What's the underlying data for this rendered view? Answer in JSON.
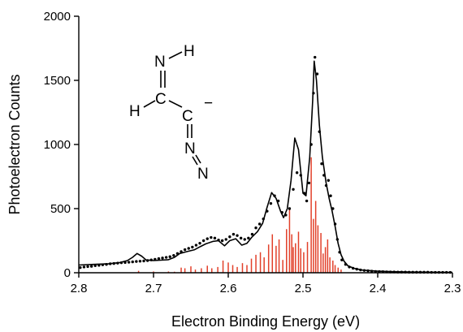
{
  "chart_data": {
    "type": "line",
    "title": "",
    "xlabel": "Electron Binding Energy (eV)",
    "ylabel": "Photoelectron Counts",
    "xlim": [
      2.8,
      2.3
    ],
    "ylim": [
      0,
      2000
    ],
    "x_reversed": true,
    "x_ticks": [
      "2.8",
      "2.7",
      "2.6",
      "2.5",
      "2.4",
      "2.3"
    ],
    "y_ticks": [
      "0",
      "500",
      "1000",
      "1500",
      "2000"
    ],
    "grid": false,
    "legend": "none",
    "series": [
      {
        "kind": "dots",
        "color": "#000000",
        "points": [
          [
            2.798,
            40
          ],
          [
            2.793,
            45
          ],
          [
            2.788,
            48
          ],
          [
            2.783,
            50
          ],
          [
            2.778,
            55
          ],
          [
            2.773,
            58
          ],
          [
            2.768,
            62
          ],
          [
            2.763,
            65
          ],
          [
            2.758,
            70
          ],
          [
            2.753,
            72
          ],
          [
            2.748,
            75
          ],
          [
            2.743,
            78
          ],
          [
            2.738,
            80
          ],
          [
            2.733,
            82
          ],
          [
            2.728,
            85
          ],
          [
            2.723,
            88
          ],
          [
            2.718,
            90
          ],
          [
            2.713,
            92
          ],
          [
            2.708,
            95
          ],
          [
            2.703,
            100
          ],
          [
            2.698,
            105
          ],
          [
            2.693,
            110
          ],
          [
            2.688,
            115
          ],
          [
            2.683,
            120
          ],
          [
            2.678,
            125
          ],
          [
            2.673,
            135
          ],
          [
            2.668,
            150
          ],
          [
            2.663,
            165
          ],
          [
            2.658,
            180
          ],
          [
            2.653,
            190
          ],
          [
            2.648,
            200
          ],
          [
            2.643,
            215
          ],
          [
            2.638,
            230
          ],
          [
            2.633,
            250
          ],
          [
            2.628,
            265
          ],
          [
            2.623,
            275
          ],
          [
            2.618,
            270
          ],
          [
            2.613,
            255
          ],
          [
            2.608,
            250
          ],
          [
            2.603,
            260
          ],
          [
            2.598,
            280
          ],
          [
            2.593,
            300
          ],
          [
            2.588,
            290
          ],
          [
            2.583,
            270
          ],
          [
            2.578,
            260
          ],
          [
            2.573,
            270
          ],
          [
            2.568,
            300
          ],
          [
            2.563,
            350
          ],
          [
            2.558,
            380
          ],
          [
            2.553,
            420
          ],
          [
            2.548,
            480
          ],
          [
            2.543,
            540
          ],
          [
            2.538,
            600
          ],
          [
            2.533,
            560
          ],
          [
            2.528,
            470
          ],
          [
            2.523,
            450
          ],
          [
            2.518,
            500
          ],
          [
            2.513,
            650
          ],
          [
            2.508,
            780
          ],
          [
            2.503,
            760
          ],
          [
            2.498,
            620
          ],
          [
            2.495,
            560
          ],
          [
            2.492,
            700
          ],
          [
            2.489,
            1000
          ],
          [
            2.486,
            1400
          ],
          [
            2.484,
            1680
          ],
          [
            2.481,
            1550
          ],
          [
            2.478,
            1100
          ],
          [
            2.475,
            850
          ],
          [
            2.472,
            760
          ],
          [
            2.469,
            680
          ],
          [
            2.466,
            720
          ],
          [
            2.463,
            600
          ],
          [
            2.46,
            500
          ],
          [
            2.457,
            380
          ],
          [
            2.454,
            260
          ],
          [
            2.451,
            160
          ],
          [
            2.448,
            100
          ],
          [
            2.443,
            65
          ],
          [
            2.438,
            45
          ],
          [
            2.433,
            35
          ],
          [
            2.428,
            28
          ],
          [
            2.423,
            22
          ],
          [
            2.418,
            18
          ],
          [
            2.413,
            15
          ],
          [
            2.408,
            12
          ],
          [
            2.403,
            10
          ],
          [
            2.398,
            9
          ],
          [
            2.393,
            8
          ],
          [
            2.388,
            7
          ],
          [
            2.383,
            6
          ],
          [
            2.378,
            6
          ],
          [
            2.373,
            5
          ],
          [
            2.368,
            5
          ],
          [
            2.363,
            5
          ],
          [
            2.358,
            4
          ],
          [
            2.353,
            4
          ],
          [
            2.348,
            4
          ],
          [
            2.343,
            4
          ],
          [
            2.338,
            4
          ],
          [
            2.333,
            4
          ],
          [
            2.328,
            3
          ],
          [
            2.323,
            3
          ],
          [
            2.318,
            3
          ],
          [
            2.313,
            3
          ],
          [
            2.308,
            3
          ],
          [
            2.303,
            3
          ]
        ]
      },
      {
        "kind": "line",
        "color": "#000000",
        "points": [
          [
            2.8,
            60
          ],
          [
            2.78,
            65
          ],
          [
            2.76,
            70
          ],
          [
            2.745,
            80
          ],
          [
            2.735,
            95
          ],
          [
            2.728,
            120
          ],
          [
            2.722,
            150
          ],
          [
            2.716,
            130
          ],
          [
            2.71,
            100
          ],
          [
            2.7,
            95
          ],
          [
            2.69,
            98
          ],
          [
            2.68,
            102
          ],
          [
            2.672,
            120
          ],
          [
            2.665,
            150
          ],
          [
            2.655,
            165
          ],
          [
            2.645,
            180
          ],
          [
            2.637,
            205
          ],
          [
            2.63,
            225
          ],
          [
            2.62,
            245
          ],
          [
            2.613,
            250
          ],
          [
            2.605,
            210
          ],
          [
            2.598,
            250
          ],
          [
            2.59,
            265
          ],
          [
            2.582,
            215
          ],
          [
            2.575,
            230
          ],
          [
            2.568,
            280
          ],
          [
            2.561,
            320
          ],
          [
            2.554,
            385
          ],
          [
            2.548,
            510
          ],
          [
            2.542,
            625
          ],
          [
            2.536,
            580
          ],
          [
            2.53,
            480
          ],
          [
            2.526,
            430
          ],
          [
            2.521,
            500
          ],
          [
            2.516,
            720
          ],
          [
            2.511,
            1050
          ],
          [
            2.506,
            960
          ],
          [
            2.5,
            620
          ],
          [
            2.496,
            600
          ],
          [
            2.491,
            900
          ],
          [
            2.487,
            1350
          ],
          [
            2.485,
            1650
          ],
          [
            2.482,
            1500
          ],
          [
            2.478,
            1150
          ],
          [
            2.474,
            900
          ],
          [
            2.469,
            700
          ],
          [
            2.465,
            580
          ],
          [
            2.461,
            480
          ],
          [
            2.457,
            360
          ],
          [
            2.453,
            230
          ],
          [
            2.449,
            140
          ],
          [
            2.445,
            90
          ],
          [
            2.44,
            55
          ],
          [
            2.432,
            35
          ],
          [
            2.42,
            20
          ],
          [
            2.4,
            12
          ],
          [
            2.38,
            8
          ],
          [
            2.35,
            5
          ],
          [
            2.3,
            3
          ]
        ]
      },
      {
        "kind": "sticks",
        "color": "#e2402a",
        "points": [
          [
            2.72,
            15
          ],
          [
            2.7,
            10
          ],
          [
            2.68,
            10
          ],
          [
            2.672,
            8
          ],
          [
            2.663,
            40
          ],
          [
            2.658,
            35
          ],
          [
            2.65,
            50
          ],
          [
            2.644,
            25
          ],
          [
            2.636,
            35
          ],
          [
            2.628,
            55
          ],
          [
            2.622,
            35
          ],
          [
            2.614,
            45
          ],
          [
            2.607,
            95
          ],
          [
            2.6,
            80
          ],
          [
            2.594,
            60
          ],
          [
            2.588,
            45
          ],
          [
            2.581,
            75
          ],
          [
            2.575,
            60
          ],
          [
            2.569,
            110
          ],
          [
            2.563,
            140
          ],
          [
            2.557,
            160
          ],
          [
            2.552,
            120
          ],
          [
            2.546,
            220
          ],
          [
            2.541,
            300
          ],
          [
            2.536,
            210
          ],
          [
            2.532,
            260
          ],
          [
            2.527,
            100
          ],
          [
            2.522,
            340
          ],
          [
            2.518,
            500
          ],
          [
            2.515,
            300
          ],
          [
            2.513,
            200
          ],
          [
            2.51,
            230
          ],
          [
            2.506,
            320
          ],
          [
            2.503,
            190
          ],
          [
            2.499,
            160
          ],
          [
            2.494,
            240
          ],
          [
            2.489,
            900
          ],
          [
            2.486,
            420
          ],
          [
            2.483,
            560
          ],
          [
            2.48,
            370
          ],
          [
            2.476,
            310
          ],
          [
            2.473,
            150
          ],
          [
            2.47,
            200
          ],
          [
            2.467,
            260
          ],
          [
            2.464,
            120
          ],
          [
            2.46,
            95
          ],
          [
            2.457,
            60
          ],
          [
            2.453,
            40
          ],
          [
            2.449,
            25
          ]
        ]
      }
    ],
    "molecule": {
      "atoms": [
        "N",
        "H",
        "H",
        "C",
        "C",
        "N",
        "N"
      ],
      "charge": "−"
    }
  }
}
